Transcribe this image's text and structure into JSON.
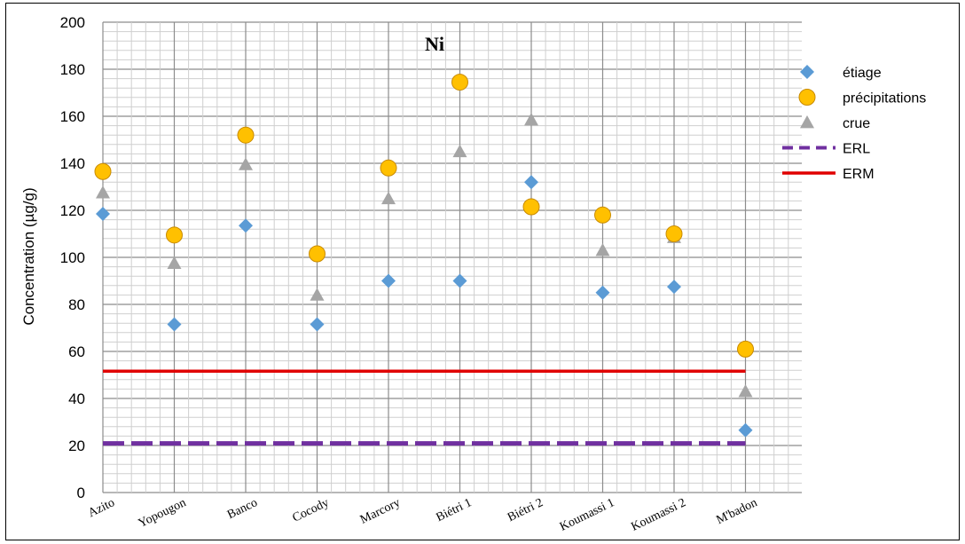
{
  "chart_data": {
    "type": "scatter",
    "title": "Ni",
    "xlabel": "",
    "ylabel": "Concentration (µg/g)",
    "ylim": [
      0,
      200
    ],
    "yticks": [
      0,
      20,
      40,
      60,
      80,
      100,
      120,
      140,
      160,
      180,
      200
    ],
    "categories": [
      "Azito",
      "Yopougon",
      "Banco",
      "Cocody",
      "Marcory",
      "Biétri 1",
      "Biétri 2",
      "Koumassi 1",
      "Koumassi 2",
      "M'badon"
    ],
    "grid": true,
    "legend_position": "right",
    "series": [
      {
        "name": "étiage",
        "marker": "diamond",
        "color": "#5b9bd5",
        "values": [
          118.5,
          71.5,
          113.5,
          71.5,
          90,
          90,
          132,
          85,
          87.5,
          26.5
        ]
      },
      {
        "name": "précipitations",
        "marker": "circle",
        "color": "#ffc000",
        "values": [
          136.5,
          109.5,
          152,
          101.5,
          138,
          174.5,
          121.5,
          118,
          110,
          61
        ]
      },
      {
        "name": "crue",
        "marker": "triangle",
        "color": "#a5a5a5",
        "values": [
          127.5,
          97.5,
          139.5,
          84,
          125,
          145,
          158.5,
          103,
          108.5,
          43
        ]
      }
    ],
    "reference_lines": [
      {
        "name": "ERL",
        "value": 20.9,
        "style": "dashed",
        "color": "#7030a0"
      },
      {
        "name": "ERM",
        "value": 51.6,
        "style": "solid",
        "color": "#e00000"
      }
    ]
  }
}
